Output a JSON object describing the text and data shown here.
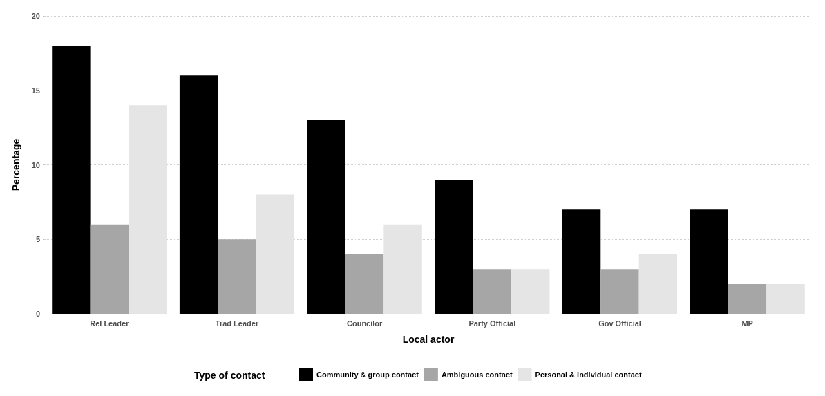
{
  "chart_data": {
    "type": "bar",
    "xlabel": "Local actor",
    "ylabel": "Percentage",
    "legend_title": "Type of contact",
    "categories": [
      "Rel Leader",
      "Trad Leader",
      "Councilor",
      "Party Official",
      "Gov Official",
      "MP"
    ],
    "series": [
      {
        "name": "Community & group contact",
        "color": "#000000",
        "values": [
          18,
          16,
          13,
          9,
          7,
          7
        ]
      },
      {
        "name": "Ambiguous contact",
        "color": "#a6a6a6",
        "values": [
          6,
          5,
          4,
          3,
          3,
          2
        ]
      },
      {
        "name": "Personal & individual contact",
        "color": "#e5e5e5",
        "values": [
          14,
          8,
          6,
          3,
          4,
          2
        ]
      }
    ],
    "ylim": [
      0,
      20
    ],
    "yticks": [
      0,
      5,
      10,
      15,
      20
    ],
    "grid": "y",
    "legend": "bottom"
  }
}
